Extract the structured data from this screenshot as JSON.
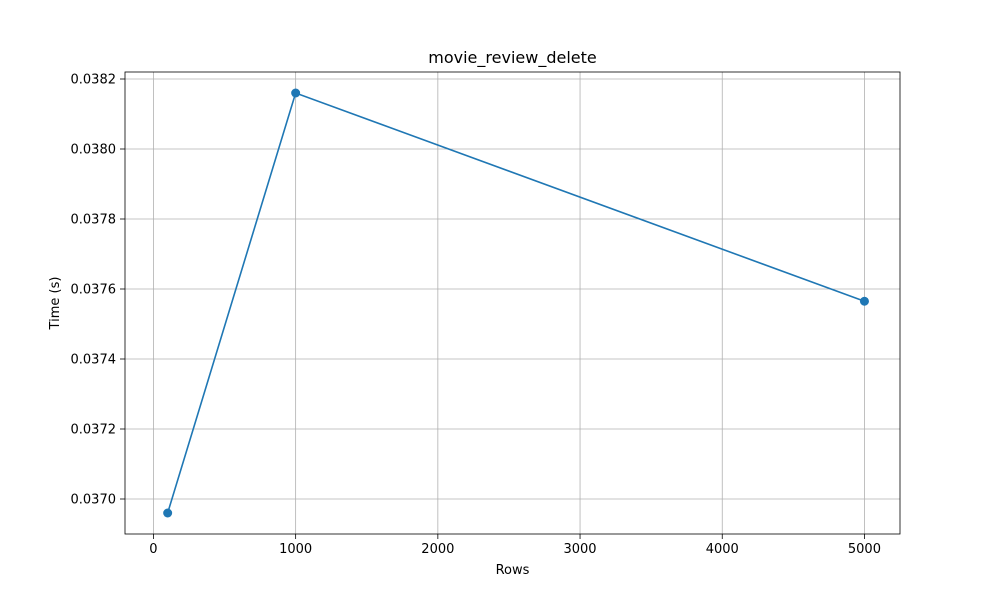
{
  "chart_data": {
    "type": "line",
    "title": "movie_review_delete",
    "xlabel": "Rows",
    "ylabel": "Time (s)",
    "xlim": [
      -200,
      5250
    ],
    "ylim": [
      0.0369,
      0.03822
    ],
    "x_ticks": [
      0,
      1000,
      2000,
      3000,
      4000,
      5000
    ],
    "y_ticks": [
      0.037,
      0.0372,
      0.0374,
      0.0376,
      0.0378,
      0.038,
      0.0382
    ],
    "grid": true,
    "series": [
      {
        "x": [
          100,
          1000,
          5000
        ],
        "y": [
          0.03696,
          0.03816,
          0.037565
        ],
        "color": "#1f77b4",
        "marker": "circle"
      }
    ]
  }
}
